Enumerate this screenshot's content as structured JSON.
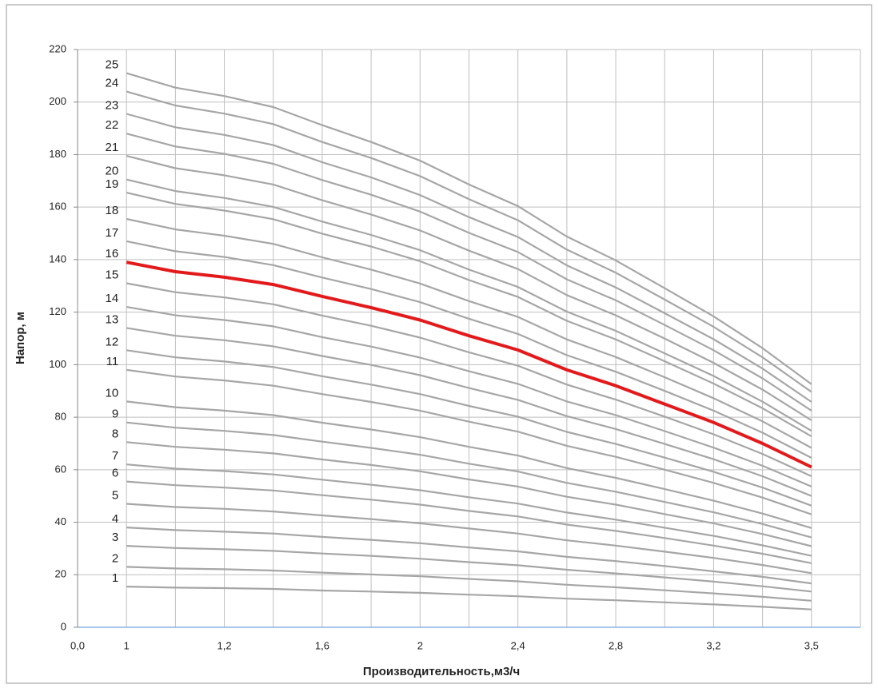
{
  "chart_data": {
    "type": "line",
    "x_label": "Производительность,м3/ч",
    "y_label": "Напор, м",
    "categories": [
      "0,0",
      "1",
      null,
      "1,2",
      null,
      "1,6",
      null,
      "2",
      null,
      "2,4",
      null,
      "2,8",
      null,
      "3,2",
      null,
      "3,5",
      null
    ],
    "ylim": [
      0,
      220
    ],
    "yticks": [
      0,
      20,
      40,
      60,
      80,
      100,
      120,
      140,
      160,
      180,
      200,
      220
    ],
    "grid": true,
    "series": [
      {
        "name": "1",
        "color": "#a6a6a6",
        "values": [
          null,
          15.5,
          15.1,
          14.9,
          14.6,
          14,
          13.6,
          13.1,
          12.4,
          11.8,
          10.9,
          10.3,
          9.5,
          8.7,
          7.8,
          6.8,
          null
        ]
      },
      {
        "name": "2",
        "color": "#a6a6a6",
        "values": [
          null,
          23,
          22.4,
          22.1,
          21.6,
          20.8,
          20.1,
          19.4,
          18.4,
          17.5,
          16.2,
          15.2,
          14.1,
          12.9,
          11.6,
          10.1,
          null
        ]
      },
      {
        "name": "3",
        "color": "#a6a6a6",
        "values": [
          null,
          31,
          30.2,
          29.7,
          29.1,
          28.1,
          27.2,
          26.1,
          24.8,
          23.6,
          21.9,
          20.5,
          19,
          17.4,
          15.6,
          13.6,
          null
        ]
      },
      {
        "name": "4",
        "color": "#a6a6a6",
        "values": [
          null,
          38,
          37,
          36.4,
          35.7,
          34.4,
          33.3,
          32,
          30.4,
          28.9,
          26.8,
          25.2,
          23.3,
          21.3,
          19.2,
          16.7,
          null
        ]
      },
      {
        "name": "5",
        "color": "#a6a6a6",
        "values": [
          null,
          47,
          45.8,
          45.1,
          44.1,
          42.6,
          41.2,
          39.6,
          37.6,
          35.7,
          33.1,
          31.1,
          28.8,
          26.4,
          23.7,
          20.6,
          null
        ]
      },
      {
        "name": "6",
        "color": "#a6a6a6",
        "values": [
          null,
          55.5,
          54.1,
          53.2,
          52.1,
          50.3,
          48.6,
          46.7,
          44.3,
          42.2,
          39.1,
          36.7,
          34,
          31.1,
          28,
          24.4,
          null
        ]
      },
      {
        "name": "7",
        "color": "#a6a6a6",
        "values": [
          null,
          62,
          60.4,
          59.5,
          58.2,
          56.2,
          54.3,
          52.2,
          49.5,
          47.1,
          43.7,
          41,
          37.9,
          34.8,
          31.2,
          27.2,
          null
        ]
      },
      {
        "name": "8",
        "color": "#a6a6a6",
        "values": [
          null,
          70.5,
          68.7,
          67.6,
          66.2,
          63.9,
          61.8,
          59.4,
          56.3,
          53.6,
          49.7,
          46.7,
          43.1,
          39.6,
          35.5,
          30.9,
          null
        ]
      },
      {
        "name": "9",
        "color": "#a6a6a6",
        "values": [
          null,
          78,
          76,
          74.8,
          73.2,
          70.7,
          68.3,
          65.7,
          62.3,
          59.3,
          55,
          51.6,
          47.7,
          43.8,
          39.3,
          34.2,
          null
        ]
      },
      {
        "name": "10",
        "color": "#a6a6a6",
        "values": [
          null,
          86,
          83.8,
          82.5,
          80.8,
          77.9,
          75.3,
          72.4,
          68.7,
          65.4,
          60.6,
          56.9,
          52.6,
          48.2,
          43.3,
          37.8,
          null
        ]
      },
      {
        "name": "11",
        "color": "#a6a6a6",
        "values": [
          null,
          98,
          95.5,
          94,
          92,
          88.8,
          85.8,
          82.5,
          78.3,
          74.5,
          69.1,
          64.9,
          60,
          55,
          49.4,
          43,
          null
        ]
      },
      {
        "name": "12",
        "color": "#a6a6a6",
        "values": [
          null,
          105.5,
          102.8,
          101.2,
          99.1,
          95.6,
          92.4,
          88.8,
          84.3,
          80.2,
          74.4,
          69.8,
          64.6,
          59.2,
          53.2,
          46.3,
          null
        ]
      },
      {
        "name": "13",
        "color": "#a6a6a6",
        "values": [
          null,
          114,
          111,
          109.3,
          107,
          103.3,
          99.9,
          96,
          91.1,
          86.6,
          80.4,
          75.5,
          69.8,
          64,
          57.5,
          50,
          null
        ]
      },
      {
        "name": "14",
        "color": "#a6a6a6",
        "values": [
          null,
          122,
          118.8,
          117,
          114.6,
          110.5,
          106.9,
          102.7,
          97.5,
          92.7,
          86,
          80.8,
          74.7,
          68.4,
          61.5,
          53.6,
          null
        ]
      },
      {
        "name": "15",
        "color": "#a6a6a6",
        "values": [
          null,
          131,
          127.6,
          125.6,
          123,
          118.7,
          114.8,
          110.3,
          104.7,
          99.6,
          92.4,
          86.7,
          80.2,
          73.5,
          66,
          57.5,
          null
        ]
      },
      {
        "name": "16",
        "color": "#e31a1c",
        "values": [
          null,
          139,
          135.4,
          133.3,
          130.5,
          126,
          121.7,
          117,
          111,
          105.6,
          98,
          92,
          85,
          78,
          70,
          61,
          null
        ]
      },
      {
        "name": "17",
        "color": "#a6a6a6",
        "values": [
          null,
          147,
          143.2,
          141,
          137.9,
          133.2,
          128.8,
          123.8,
          117.5,
          111.7,
          103.6,
          97.3,
          90,
          82.5,
          74.1,
          64.5,
          null
        ]
      },
      {
        "name": "18",
        "color": "#a6a6a6",
        "values": [
          null,
          155.5,
          151.5,
          149.1,
          146,
          140.9,
          136.2,
          130.9,
          124.2,
          118.2,
          109.6,
          102.9,
          95.2,
          87.2,
          78.4,
          68.3,
          null
        ]
      },
      {
        "name": "19",
        "color": "#a6a6a6",
        "values": [
          null,
          165.5,
          161.2,
          158.7,
          155.4,
          149.9,
          145,
          139.4,
          132.2,
          125.8,
          116.7,
          109.6,
          101.3,
          92.8,
          83.4,
          72.7,
          null
        ]
      },
      {
        "name": "20",
        "color": "#a6a6a6",
        "values": [
          null,
          170.5,
          166.1,
          163.5,
          160.1,
          154.5,
          149.4,
          143.6,
          136.2,
          129.6,
          120.2,
          112.9,
          104.3,
          95.7,
          85.9,
          74.8,
          null
        ]
      },
      {
        "name": "21",
        "color": "#a6a6a6",
        "values": [
          null,
          179.5,
          174.8,
          172.1,
          168.6,
          162.6,
          157.2,
          151.1,
          143.4,
          136.4,
          126.5,
          118.8,
          109.9,
          100.7,
          90.5,
          78.8,
          null
        ]
      },
      {
        "name": "22",
        "color": "#a6a6a6",
        "values": [
          null,
          188,
          183.1,
          180.3,
          176.5,
          170.3,
          164.7,
          158.3,
          150.2,
          142.9,
          132.5,
          124.5,
          115.1,
          105.5,
          94.8,
          82.5,
          null
        ]
      },
      {
        "name": "23",
        "color": "#a6a6a6",
        "values": [
          null,
          195.5,
          190.4,
          187.5,
          183.6,
          177.1,
          171.3,
          164.6,
          156.2,
          148.6,
          137.8,
          129.4,
          119.6,
          109.7,
          98.5,
          85.8,
          null
        ]
      },
      {
        "name": "24",
        "color": "#a6a6a6",
        "values": [
          null,
          204,
          198.7,
          195.6,
          191.6,
          184.8,
          178.7,
          171.8,
          163,
          155,
          143.8,
          135,
          124.8,
          114.4,
          102.8,
          89.6,
          null
        ]
      },
      {
        "name": "25",
        "color": "#a6a6a6",
        "values": [
          null,
          211,
          205.5,
          202.3,
          198.1,
          191.2,
          184.8,
          177.7,
          168.6,
          160.4,
          148.8,
          139.7,
          129.1,
          118.4,
          106.3,
          92.6,
          null
        ]
      }
    ]
  }
}
